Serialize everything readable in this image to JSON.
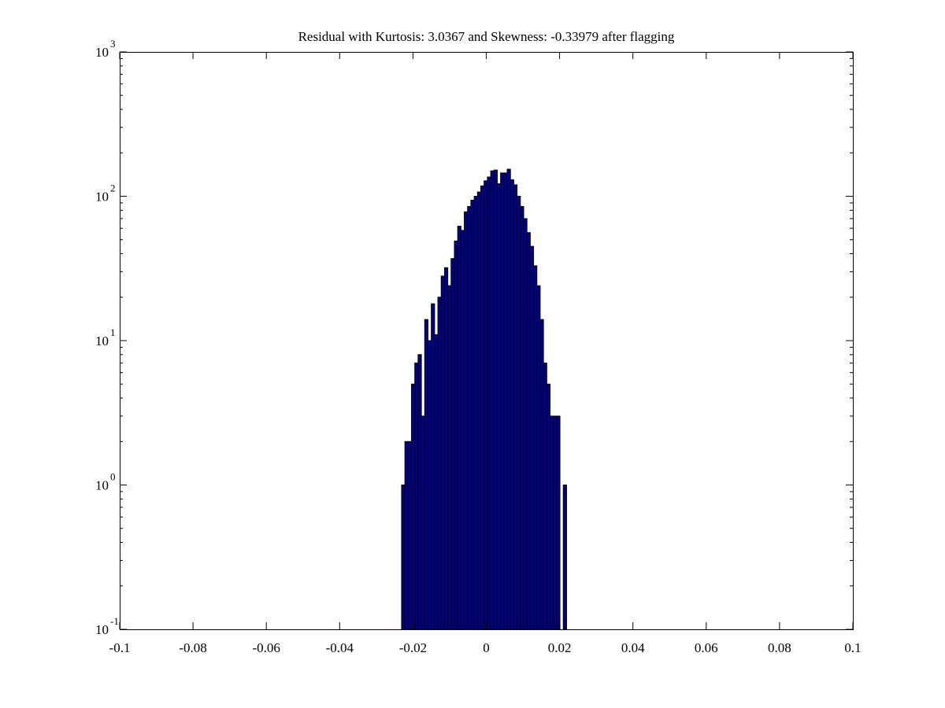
{
  "chart_data": {
    "type": "bar",
    "subtype": "histogram",
    "title": "Residual with Kurtosis: 3.0367 and Skewness: -0.33979 after flagging",
    "xlabel": "",
    "ylabel": "",
    "yscale": "log",
    "xlim": [
      -0.1,
      0.1
    ],
    "ylim": [
      0.1,
      1000
    ],
    "grid": false,
    "legend": false,
    "bin_width": 0.0009,
    "bin_centers": [
      -0.02265,
      -0.02175,
      -0.02085,
      -0.01995,
      -0.01905,
      -0.01815,
      -0.01725,
      -0.01635,
      -0.01545,
      -0.01455,
      -0.01365,
      -0.01275,
      -0.01185,
      -0.01095,
      -0.01005,
      -0.00915,
      -0.00825,
      -0.00735,
      -0.00645,
      -0.00555,
      -0.00465,
      -0.00375,
      -0.00285,
      -0.00195,
      -0.00105,
      -0.00015,
      0.00075,
      0.00165,
      0.00255,
      0.00345,
      0.00435,
      0.00525,
      0.00615,
      0.00705,
      0.00795,
      0.00885,
      0.00975,
      0.01065,
      0.01155,
      0.01245,
      0.01335,
      0.01425,
      0.01515,
      0.01605,
      0.01695,
      0.01785,
      0.01875,
      0.01965,
      0.02055,
      0.02145
    ],
    "values": [
      1,
      2,
      2,
      5,
      7,
      8,
      3,
      14,
      10,
      18,
      11,
      20,
      28,
      32,
      24,
      37,
      49,
      62,
      58,
      78,
      85,
      94,
      100,
      107,
      118,
      128,
      136,
      150,
      152,
      122,
      145,
      145,
      154,
      130,
      120,
      100,
      85,
      70,
      56,
      45,
      33,
      24,
      14,
      7,
      5,
      3,
      3,
      3,
      0,
      1
    ],
    "xticks": [
      -0.1,
      -0.08,
      -0.06,
      -0.04,
      -0.02,
      0,
      0.02,
      0.04,
      0.06,
      0.08,
      0.1
    ],
    "xtick_labels": [
      "-0.1",
      "-0.08",
      "-0.06",
      "-0.04",
      "-0.02",
      "0",
      "0.02",
      "0.04",
      "0.06",
      "0.08",
      "0.1"
    ],
    "ytick_base": "10",
    "ytick_exponents": [
      "3",
      "2",
      "1",
      "0",
      "-1"
    ],
    "colors": {
      "bar_fill": "#00008B",
      "bar_edge": "#000000",
      "axis": "#000000",
      "background": "#FFFFFF",
      "text": "#000000"
    }
  }
}
